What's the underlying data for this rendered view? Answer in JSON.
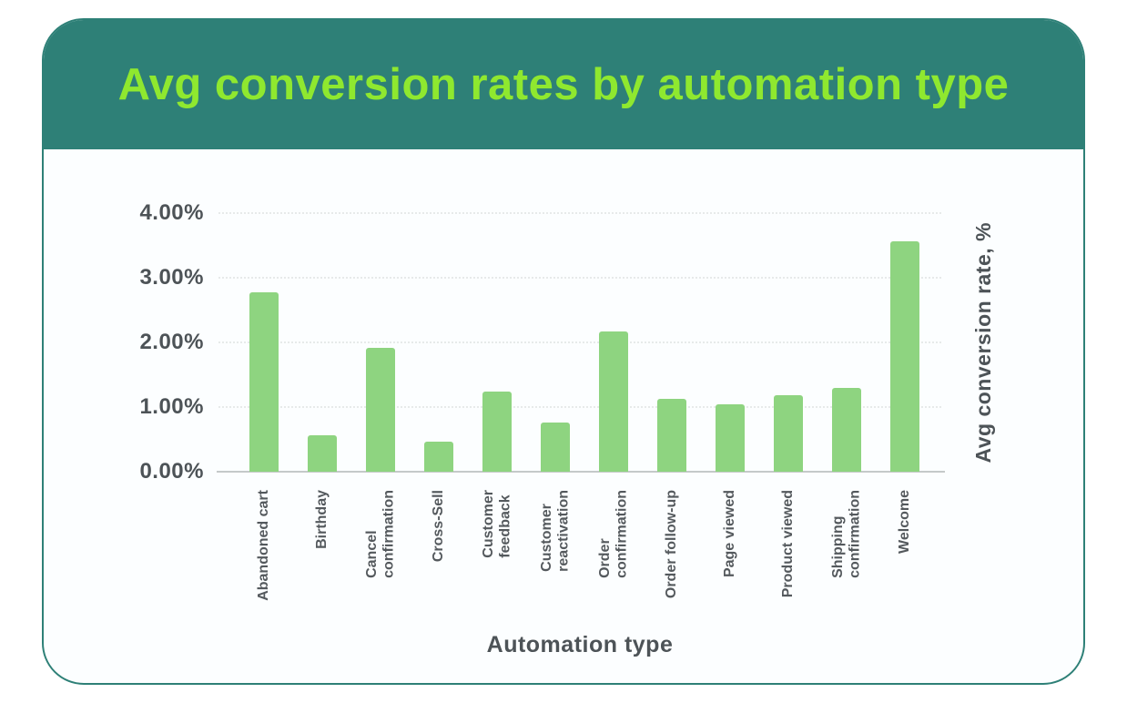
{
  "page": {
    "background": "#ffffff"
  },
  "card": {
    "title": "Avg conversion rates by automation type",
    "title_color": "#8fe82f",
    "header_bg": "#2e8077",
    "border_color": "#2e8077",
    "body_bg": "#fcfeff"
  },
  "chart_data": {
    "type": "bar",
    "title": "Avg conversion rates by automation type",
    "xlabel": "Automation type",
    "ylabel": "Avg conversion rate, %",
    "ylim": [
      0,
      4
    ],
    "grid": true,
    "legend": "none",
    "bar_color": "#8ed480",
    "ytick_labels": [
      "4.00%",
      "3.00%",
      "2.00%",
      "1.00%",
      "0.00%"
    ],
    "ytick_values": [
      4,
      3,
      2,
      1,
      0
    ],
    "categories": [
      "Abandoned cart",
      "Birthday",
      "Cancel\nconfirmation",
      "Cross-Sell",
      "Customer\nfeedback",
      "Customer\nreactivation",
      "Order\nconfirmation",
      "Order follow-up",
      "Page viewed",
      "Product viewed",
      "Shipping\nconfirmation",
      "Welcome"
    ],
    "values": [
      2.78,
      0.57,
      1.91,
      0.47,
      1.24,
      0.76,
      2.17,
      1.12,
      1.04,
      1.19,
      1.29,
      3.57
    ]
  }
}
